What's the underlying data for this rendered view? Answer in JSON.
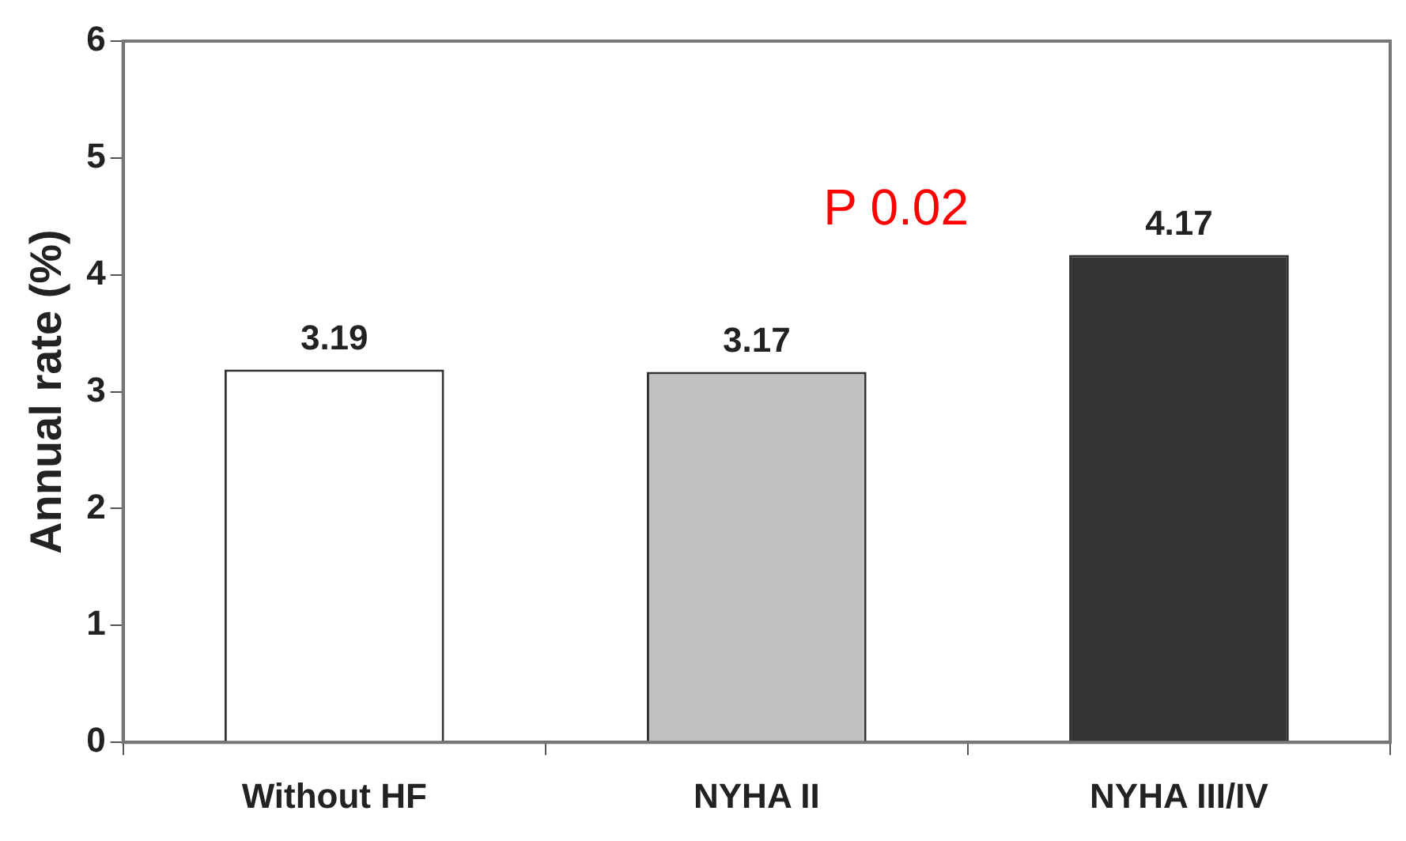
{
  "chart_data": {
    "type": "bar",
    "ylabel": "Annual rate (%)",
    "categories": [
      "Without HF",
      "NYHA II",
      "NYHA III/IV"
    ],
    "values": [
      3.19,
      3.17,
      4.17
    ],
    "colors": [
      "#ffffff",
      "#c0c0c0",
      "#333333"
    ],
    "ylim": [
      0,
      6
    ],
    "yticks": [
      0,
      1,
      2,
      3,
      4,
      5,
      6
    ],
    "grid": false,
    "legend": false,
    "data_labels": true,
    "annotations": [
      "P 0.02"
    ]
  }
}
